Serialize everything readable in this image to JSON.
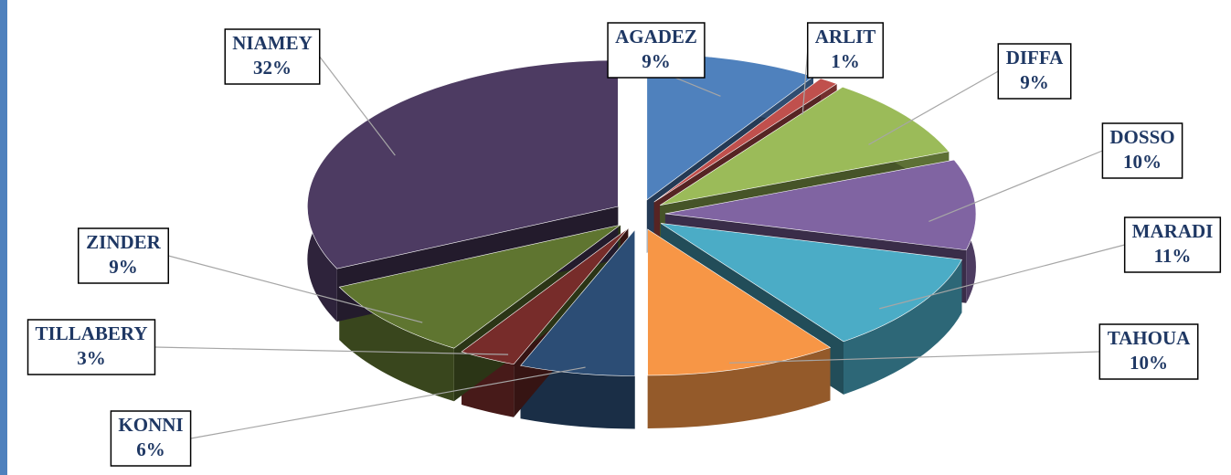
{
  "chart_data": {
    "type": "pie3d",
    "categories": [
      "AGADEZ",
      "ARLIT",
      "DIFFA",
      "DOSSO",
      "MARADI",
      "TAHOUA",
      "KONNI",
      "TILLABERY",
      "ZINDER",
      "NIAMEY"
    ],
    "values": [
      9,
      1,
      9,
      10,
      11,
      10,
      6,
      3,
      9,
      32
    ],
    "value_labels": [
      "9%",
      "1%",
      "9%",
      "10%",
      "11%",
      "10%",
      "6%",
      "3%",
      "9%",
      "32%"
    ],
    "colors": [
      "#4f81bd",
      "#c0504d",
      "#9bbb59",
      "#8064a2",
      "#4bacc6",
      "#f79646",
      "#2c4d75",
      "#772c2a",
      "#5f7530",
      "#4d3b62"
    ]
  }
}
